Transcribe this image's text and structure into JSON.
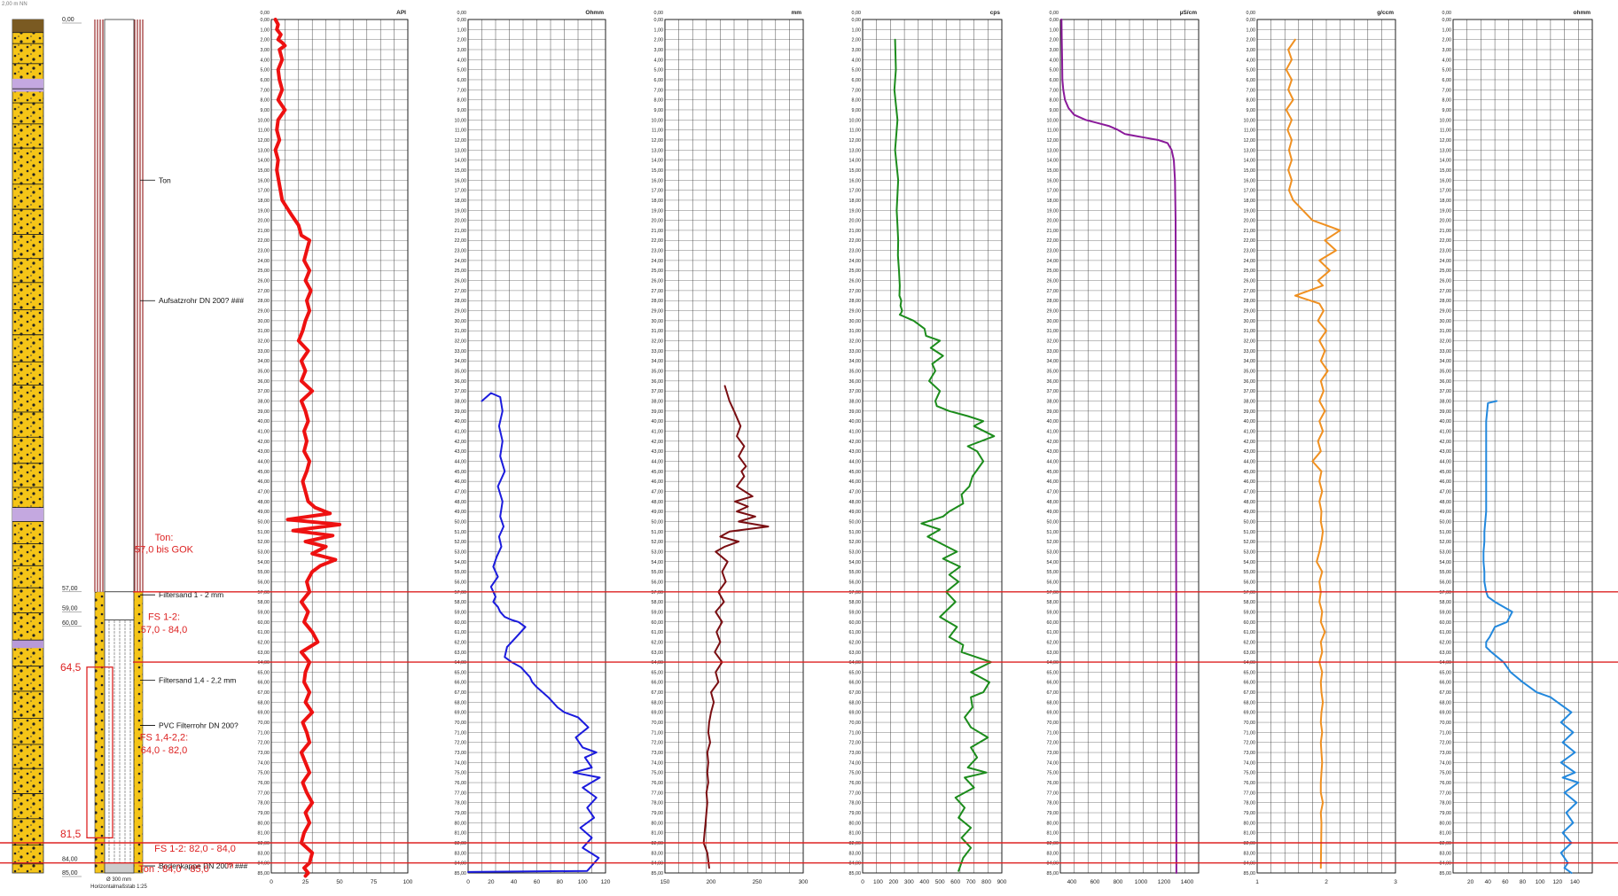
{
  "corner_text": "2,00 m NN",
  "well": {
    "depth_labels": [
      "0,00",
      "57,00",
      "59,00",
      "60,00",
      "84,00",
      "85,00"
    ],
    "callouts": [
      "Ton",
      "Aufsatzrohr DN 200? ###",
      "Filtersand 1 - 2 mm",
      "Filtersand 1,4 - 2,2 mm",
      "PVC Filterrohr DN 200?",
      "Bodenkappe DN 200? ###"
    ],
    "red_notes": [
      "Ton:",
      "57,0 bis GOK",
      "FS 1-2:",
      "57,0 - 84,0",
      "64,5",
      "FS 1,4-2,2:",
      "64,0 - 82,0",
      "81,5",
      "FS 1-2: 82,0 - 84,0",
      "Ton : 84,0 - 85,0",
      "m"
    ],
    "footer": [
      "Ø 300 mm",
      "Horizontalmaßstab 1:25"
    ]
  },
  "colors": {
    "sand": "#f5c518",
    "gamma": "#ee1111",
    "resistivity": "#1b1bdd",
    "caliper": "#7a0e12",
    "neutron": "#1c8c1c",
    "conductivity": "#8a1a9a",
    "density": "#f09020",
    "induction": "#2288dd",
    "marker": "#dd2222"
  },
  "depth_markers_m": [
    57,
    64,
    82,
    84
  ],
  "chart_data": [
    {
      "type": "line",
      "unit": "API",
      "color": "#ee1111",
      "xlim": [
        0,
        100
      ],
      "xticks": [
        0,
        25,
        50,
        75,
        100
      ],
      "ylim": [
        0,
        85
      ],
      "y_inverted": true,
      "x": [
        3,
        5,
        4,
        7,
        5,
        8,
        10,
        6,
        8,
        5,
        6,
        8,
        5,
        10,
        5,
        4,
        6,
        3,
        5,
        4,
        8,
        15,
        20,
        22,
        28,
        26,
        24,
        28,
        25,
        29,
        26,
        28,
        25,
        23,
        20,
        27,
        22,
        25,
        22,
        30,
        22,
        25,
        27,
        24,
        26,
        24,
        28,
        26,
        23,
        25,
        27,
        32,
        43,
        12,
        50,
        16,
        45,
        25,
        40,
        30,
        47,
        36,
        30,
        26,
        28,
        22,
        27,
        24,
        30,
        34,
        22,
        28,
        25,
        24,
        28,
        25,
        30,
        23,
        26,
        28,
        22,
        25,
        28,
        23,
        26,
        30,
        25,
        28,
        24,
        22,
        30,
        28,
        24,
        27,
        25
      ],
      "y": [
        0,
        0.5,
        1,
        1.5,
        2,
        2.3,
        2.6,
        3,
        4,
        5,
        6,
        7,
        8,
        9,
        10,
        11,
        12,
        13,
        14,
        15,
        18,
        19.5,
        20.5,
        21.5,
        22,
        23,
        24,
        25,
        26,
        27,
        28,
        29,
        30,
        31,
        32,
        33,
        34,
        35,
        36,
        37,
        38,
        39,
        40,
        41,
        42,
        43,
        44,
        45,
        46,
        47,
        48,
        48.6,
        49.2,
        49.8,
        50.3,
        50.9,
        51.4,
        52,
        52.5,
        53.2,
        53.8,
        54.4,
        55,
        56,
        57,
        58,
        59,
        60,
        61,
        62,
        63,
        64,
        65,
        66,
        67,
        68,
        69,
        70,
        71,
        72,
        73,
        74,
        75,
        76,
        77,
        78,
        79,
        80,
        81,
        82,
        83,
        84,
        84.5,
        85,
        85.3
      ]
    },
    {
      "type": "line",
      "unit": "Ohmm",
      "color": "#1b1bdd",
      "xlim": [
        0,
        120
      ],
      "xticks": [
        0,
        20,
        40,
        60,
        80,
        100,
        120
      ],
      "ylim": [
        0,
        85
      ],
      "y_inverted": true,
      "x": [
        12,
        20,
        28,
        30,
        27,
        30,
        28,
        32,
        26,
        30,
        28,
        31,
        27,
        29,
        25,
        22,
        26,
        20,
        24,
        22,
        26,
        28,
        32,
        38,
        44,
        50,
        42,
        34,
        32,
        38,
        46,
        54,
        56,
        60,
        70,
        78,
        84,
        96,
        105,
        94,
        100,
        112,
        102,
        108,
        92,
        115,
        100,
        112,
        104,
        110,
        98,
        108,
        100,
        114,
        104,
        0
      ],
      "y": [
        38,
        37.2,
        37.6,
        39,
        40.5,
        42,
        43.5,
        45,
        46.5,
        48,
        49.5,
        50.5,
        51.5,
        52.5,
        53.5,
        54.5,
        55.5,
        56.5,
        57.5,
        58,
        58.5,
        59,
        59.5,
        59.8,
        60,
        60.5,
        61.5,
        62.5,
        63.5,
        64,
        64.5,
        65.5,
        66,
        66.5,
        67.5,
        68.5,
        69,
        69.5,
        70.5,
        71.5,
        72.5,
        73,
        73.5,
        74.5,
        75,
        75.5,
        76.5,
        77.5,
        78.5,
        79.5,
        80.5,
        81.5,
        82.5,
        83.5,
        84.8,
        84.9
      ]
    },
    {
      "type": "line",
      "unit": "mm",
      "color": "#7a0e12",
      "xlim": [
        150,
        300
      ],
      "xticks": [
        150,
        200,
        250,
        300
      ],
      "ylim": [
        0,
        85
      ],
      "y_inverted": true,
      "x": [
        215,
        220,
        225,
        232,
        228,
        236,
        230,
        238,
        233,
        236,
        228,
        245,
        226,
        240,
        228,
        248,
        230,
        262,
        220,
        210,
        230,
        215,
        205,
        218,
        212,
        216,
        208,
        214,
        205,
        212,
        206,
        210,
        204,
        212,
        205,
        208,
        200,
        203,
        200,
        198,
        197,
        199,
        196,
        197,
        196,
        197,
        195,
        196,
        195,
        194,
        193,
        192,
        196,
        198
      ],
      "y": [
        36.5,
        38,
        39,
        40.5,
        41.5,
        42.5,
        43.5,
        44.5,
        45,
        45.5,
        46.5,
        47.5,
        48,
        48.5,
        49,
        49.5,
        50,
        50.5,
        51,
        51.5,
        52,
        52.5,
        53,
        54,
        55,
        56,
        57,
        58,
        59,
        60,
        61,
        62,
        63,
        64,
        65,
        66,
        67,
        68,
        69,
        70,
        71,
        72,
        73,
        74,
        75,
        76,
        77,
        78,
        79,
        80,
        81,
        82,
        83,
        84.5
      ]
    },
    {
      "type": "line",
      "unit": "cps",
      "color": "#1c8c1c",
      "xlim": [
        0,
        900
      ],
      "xticks": [
        0,
        100,
        200,
        300,
        400,
        500,
        600,
        700,
        800,
        900
      ],
      "ylim": [
        0,
        85
      ],
      "y_inverted": true,
      "x": [
        210,
        215,
        205,
        225,
        210,
        230,
        220,
        225,
        230,
        228,
        235,
        240,
        238,
        250,
        245,
        255,
        250,
        240,
        330,
        400,
        410,
        500,
        440,
        520,
        450,
        470,
        430,
        500,
        470,
        480,
        560,
        680,
        780,
        720,
        850,
        680,
        740,
        780,
        710,
        690,
        640,
        650,
        560,
        520,
        380,
        500,
        420,
        520,
        610,
        520,
        630,
        560,
        620,
        540,
        600,
        500,
        610,
        560,
        650,
        640,
        830,
        700,
        820,
        780,
        700,
        710,
        660,
        700,
        810,
        700,
        740,
        680,
        800,
        660,
        720,
        600,
        660,
        620,
        700,
        640,
        700,
        650,
        620
      ],
      "y": [
        2,
        5,
        7,
        10,
        13,
        16,
        19,
        20.5,
        22,
        23.5,
        25,
        26.5,
        27.5,
        28,
        28.5,
        29,
        29.2,
        29.4,
        30,
        30.8,
        31.5,
        32,
        32.7,
        33.5,
        34.3,
        35,
        36,
        37,
        38,
        38.5,
        39,
        39.5,
        40,
        40.5,
        41.5,
        42.5,
        43,
        44,
        45.5,
        46.5,
        47.3,
        48.2,
        49,
        49.5,
        50.2,
        50.8,
        51.5,
        52.3,
        53,
        53.7,
        54.5,
        55.3,
        56,
        57,
        58,
        59.5,
        60.5,
        61.5,
        62.3,
        63,
        64,
        65,
        66,
        67,
        67.5,
        68.5,
        69.5,
        70.5,
        71.5,
        72.5,
        73.5,
        74.5,
        75,
        75.5,
        76.5,
        77.5,
        78.5,
        79.5,
        80.5,
        81.5,
        82.5,
        83.5,
        84.8
      ]
    },
    {
      "type": "line",
      "unit": "µS/cm",
      "color": "#8a1a9a",
      "xlim": [
        300,
        1500
      ],
      "xticks": [
        400,
        600,
        800,
        1000,
        1200,
        1400
      ],
      "ylim": [
        0,
        85
      ],
      "y_inverted": true,
      "x": [
        310,
        312,
        315,
        318,
        325,
        340,
        370,
        420,
        520,
        620,
        720,
        800,
        860,
        950,
        1050,
        1150,
        1230,
        1265,
        1285,
        1295,
        1300,
        1302,
        1304,
        1304,
        1306,
        1306,
        1307
      ],
      "y": [
        0,
        2,
        4,
        6,
        7,
        8,
        8.8,
        9.5,
        10,
        10.3,
        10.6,
        11,
        11.4,
        11.6,
        11.8,
        12,
        12.3,
        13,
        14,
        16,
        20,
        30,
        40,
        50,
        60,
        70,
        85
      ]
    },
    {
      "type": "line",
      "unit": "g/ccm",
      "color": "#f09020",
      "xlim": [
        1,
        3
      ],
      "xticks": [
        1,
        2,
        3
      ],
      "ylim": [
        0,
        85
      ],
      "y_inverted": true,
      "x": [
        1.55,
        1.45,
        1.5,
        1.42,
        1.5,
        1.45,
        1.52,
        1.42,
        1.5,
        1.44,
        1.5,
        1.46,
        1.5,
        1.45,
        1.5,
        1.46,
        1.52,
        1.8,
        2.2,
        1.98,
        2.14,
        1.9,
        2.05,
        1.88,
        1.95,
        1.75,
        1.55,
        1.9,
        1.96,
        1.88,
        2.0,
        1.9,
        1.98,
        1.92,
        2.02,
        1.92,
        1.96,
        1.9,
        1.98,
        1.9,
        1.95,
        1.88,
        1.92,
        1.8,
        1.93,
        1.9,
        1.94,
        1.9,
        1.93,
        1.92,
        1.95,
        1.93,
        1.9,
        1.86,
        1.94,
        1.9,
        1.92,
        1.9,
        1.94,
        1.92,
        1.98,
        1.92,
        1.94,
        1.9,
        1.94,
        1.92,
        1.93,
        1.95,
        1.93,
        1.92,
        1.94,
        1.92,
        1.93,
        1.94,
        1.93,
        1.92,
        1.92,
        1.95,
        1.92,
        1.93,
        1.92
      ],
      "y": [
        2,
        3,
        4,
        5,
        6,
        7,
        8,
        9,
        10,
        11,
        12,
        13,
        14,
        15,
        16,
        17,
        18,
        20,
        21,
        22,
        23,
        24,
        25,
        26,
        26.5,
        27,
        27.5,
        28.3,
        29,
        30,
        31,
        32,
        33,
        34,
        35,
        36,
        37,
        38,
        39,
        40,
        41,
        42,
        43,
        44,
        45,
        46,
        47,
        48,
        49,
        50,
        51,
        52,
        53,
        54,
        55,
        56,
        57,
        58,
        59,
        60,
        61,
        62,
        63,
        64,
        65,
        66,
        67,
        68,
        69,
        70,
        71,
        72,
        73,
        74,
        75,
        76,
        77,
        78,
        79,
        80,
        84.5
      ]
    },
    {
      "type": "line",
      "unit": "ohmm",
      "color": "#2288dd",
      "xlim": [
        0,
        160
      ],
      "xticks": [
        20,
        40,
        60,
        80,
        100,
        120,
        140
      ],
      "ylim": [
        0,
        85
      ],
      "y_inverted": true,
      "x": [
        50,
        40,
        38,
        38,
        38,
        38,
        38,
        38,
        37,
        36,
        36,
        35,
        35,
        36,
        36,
        38,
        40,
        48,
        58,
        68,
        62,
        48,
        42,
        38,
        38,
        44,
        58,
        62,
        66,
        80,
        96,
        112,
        128,
        136,
        124,
        138,
        126,
        140,
        124,
        140,
        126,
        144,
        128,
        142,
        130,
        138,
        126,
        136,
        124,
        132,
        128,
        136
      ],
      "y": [
        38,
        38.2,
        40,
        42,
        44,
        46,
        48,
        49,
        50,
        51,
        52,
        53,
        54,
        55,
        56,
        57,
        57.5,
        58,
        58.5,
        59,
        60,
        60.5,
        61.5,
        62,
        62.5,
        63,
        64,
        64.5,
        65,
        66,
        67,
        67.5,
        68.5,
        69,
        70,
        71,
        72,
        73,
        74,
        75,
        75.5,
        76,
        77,
        78,
        79,
        80,
        81,
        82,
        83,
        84,
        84.5,
        85
      ]
    }
  ]
}
